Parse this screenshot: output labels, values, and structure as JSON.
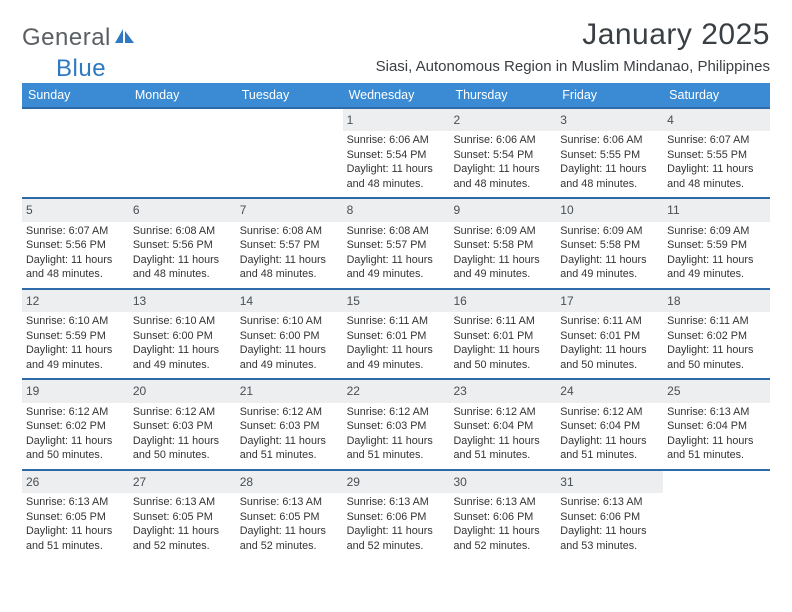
{
  "brand": {
    "part1": "General",
    "part2": "Blue"
  },
  "title": "January 2025",
  "subtitle": "Siasi, Autonomous Region in Muslim Mindanao, Philippines",
  "colors": {
    "header_bg": "#3b8bd4",
    "week_border": "#2f6aa8",
    "daynum_bg": "#eceeef",
    "text": "#333333",
    "brand_gray": "#5a5f64",
    "brand_blue": "#2f78c2",
    "page_bg": "#ffffff"
  },
  "typography": {
    "title_fontsize_pt": 22,
    "subtitle_fontsize_pt": 11,
    "dow_fontsize_pt": 9,
    "daynum_fontsize_pt": 9,
    "body_fontsize_pt": 8
  },
  "dow": [
    "Sunday",
    "Monday",
    "Tuesday",
    "Wednesday",
    "Thursday",
    "Friday",
    "Saturday"
  ],
  "weeks": [
    [
      null,
      null,
      null,
      {
        "n": "1",
        "sr": "6:06 AM",
        "ss": "5:54 PM",
        "dh": "11",
        "dm": "48"
      },
      {
        "n": "2",
        "sr": "6:06 AM",
        "ss": "5:54 PM",
        "dh": "11",
        "dm": "48"
      },
      {
        "n": "3",
        "sr": "6:06 AM",
        "ss": "5:55 PM",
        "dh": "11",
        "dm": "48"
      },
      {
        "n": "4",
        "sr": "6:07 AM",
        "ss": "5:55 PM",
        "dh": "11",
        "dm": "48"
      }
    ],
    [
      {
        "n": "5",
        "sr": "6:07 AM",
        "ss": "5:56 PM",
        "dh": "11",
        "dm": "48"
      },
      {
        "n": "6",
        "sr": "6:08 AM",
        "ss": "5:56 PM",
        "dh": "11",
        "dm": "48"
      },
      {
        "n": "7",
        "sr": "6:08 AM",
        "ss": "5:57 PM",
        "dh": "11",
        "dm": "48"
      },
      {
        "n": "8",
        "sr": "6:08 AM",
        "ss": "5:57 PM",
        "dh": "11",
        "dm": "49"
      },
      {
        "n": "9",
        "sr": "6:09 AM",
        "ss": "5:58 PM",
        "dh": "11",
        "dm": "49"
      },
      {
        "n": "10",
        "sr": "6:09 AM",
        "ss": "5:58 PM",
        "dh": "11",
        "dm": "49"
      },
      {
        "n": "11",
        "sr": "6:09 AM",
        "ss": "5:59 PM",
        "dh": "11",
        "dm": "49"
      }
    ],
    [
      {
        "n": "12",
        "sr": "6:10 AM",
        "ss": "5:59 PM",
        "dh": "11",
        "dm": "49"
      },
      {
        "n": "13",
        "sr": "6:10 AM",
        "ss": "6:00 PM",
        "dh": "11",
        "dm": "49"
      },
      {
        "n": "14",
        "sr": "6:10 AM",
        "ss": "6:00 PM",
        "dh": "11",
        "dm": "49"
      },
      {
        "n": "15",
        "sr": "6:11 AM",
        "ss": "6:01 PM",
        "dh": "11",
        "dm": "49"
      },
      {
        "n": "16",
        "sr": "6:11 AM",
        "ss": "6:01 PM",
        "dh": "11",
        "dm": "50"
      },
      {
        "n": "17",
        "sr": "6:11 AM",
        "ss": "6:01 PM",
        "dh": "11",
        "dm": "50"
      },
      {
        "n": "18",
        "sr": "6:11 AM",
        "ss": "6:02 PM",
        "dh": "11",
        "dm": "50"
      }
    ],
    [
      {
        "n": "19",
        "sr": "6:12 AM",
        "ss": "6:02 PM",
        "dh": "11",
        "dm": "50"
      },
      {
        "n": "20",
        "sr": "6:12 AM",
        "ss": "6:03 PM",
        "dh": "11",
        "dm": "50"
      },
      {
        "n": "21",
        "sr": "6:12 AM",
        "ss": "6:03 PM",
        "dh": "11",
        "dm": "51"
      },
      {
        "n": "22",
        "sr": "6:12 AM",
        "ss": "6:03 PM",
        "dh": "11",
        "dm": "51"
      },
      {
        "n": "23",
        "sr": "6:12 AM",
        "ss": "6:04 PM",
        "dh": "11",
        "dm": "51"
      },
      {
        "n": "24",
        "sr": "6:12 AM",
        "ss": "6:04 PM",
        "dh": "11",
        "dm": "51"
      },
      {
        "n": "25",
        "sr": "6:13 AM",
        "ss": "6:04 PM",
        "dh": "11",
        "dm": "51"
      }
    ],
    [
      {
        "n": "26",
        "sr": "6:13 AM",
        "ss": "6:05 PM",
        "dh": "11",
        "dm": "51"
      },
      {
        "n": "27",
        "sr": "6:13 AM",
        "ss": "6:05 PM",
        "dh": "11",
        "dm": "52"
      },
      {
        "n": "28",
        "sr": "6:13 AM",
        "ss": "6:05 PM",
        "dh": "11",
        "dm": "52"
      },
      {
        "n": "29",
        "sr": "6:13 AM",
        "ss": "6:06 PM",
        "dh": "11",
        "dm": "52"
      },
      {
        "n": "30",
        "sr": "6:13 AM",
        "ss": "6:06 PM",
        "dh": "11",
        "dm": "52"
      },
      {
        "n": "31",
        "sr": "6:13 AM",
        "ss": "6:06 PM",
        "dh": "11",
        "dm": "53"
      },
      null
    ]
  ],
  "labels": {
    "sunrise_prefix": "Sunrise: ",
    "sunset_prefix": "Sunset: ",
    "daylight_prefix": "Daylight: ",
    "hours_word": " hours and ",
    "minutes_word": " minutes."
  }
}
